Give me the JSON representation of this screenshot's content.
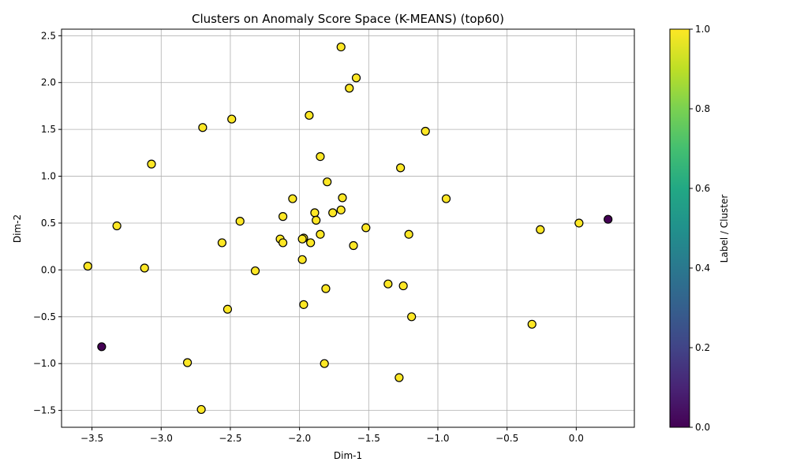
{
  "chart_data": {
    "type": "scatter",
    "title": "Clusters on Anomaly Score Space (K-MEANS) (top60)",
    "xlabel": "Dim-1",
    "ylabel": "Dim-2",
    "xlim": [
      -3.72,
      0.42
    ],
    "ylim": [
      -1.68,
      2.57
    ],
    "xticks": [
      -3.5,
      -3.0,
      -2.5,
      -2.0,
      -1.5,
      -1.0,
      -0.5,
      0.0
    ],
    "xtick_labels": [
      "−3.5",
      "−3.0",
      "−2.5",
      "−2.0",
      "−1.5",
      "−1.0",
      "−0.5",
      "0.0"
    ],
    "yticks": [
      -1.5,
      -1.0,
      -0.5,
      0.0,
      0.5,
      1.0,
      1.5,
      2.0,
      2.5
    ],
    "ytick_labels": [
      "−1.5",
      "−1.0",
      "−0.5",
      "0.0",
      "0.5",
      "1.0",
      "1.5",
      "2.0",
      "2.5"
    ],
    "grid": true,
    "colormap": "viridis",
    "colorbar": {
      "label": "Label / Cluster",
      "range": [
        0.0,
        1.0
      ],
      "ticks": [
        0.0,
        0.2,
        0.4,
        0.6,
        0.8,
        1.0
      ],
      "tick_labels": [
        "0.0",
        "0.2",
        "0.4",
        "0.6",
        "0.8",
        "1.0"
      ]
    },
    "colors": {
      "cluster_0": "#440154",
      "cluster_1": "#fde725"
    },
    "points": [
      {
        "x": -1.7,
        "y": 2.38,
        "c": 1
      },
      {
        "x": -1.59,
        "y": 2.05,
        "c": 1
      },
      {
        "x": -1.64,
        "y": 1.94,
        "c": 1
      },
      {
        "x": -1.93,
        "y": 1.65,
        "c": 1
      },
      {
        "x": -2.49,
        "y": 1.61,
        "c": 1
      },
      {
        "x": -2.7,
        "y": 1.52,
        "c": 1
      },
      {
        "x": -1.09,
        "y": 1.48,
        "c": 1
      },
      {
        "x": -1.85,
        "y": 1.21,
        "c": 1
      },
      {
        "x": -3.07,
        "y": 1.13,
        "c": 1
      },
      {
        "x": -1.27,
        "y": 1.09,
        "c": 1
      },
      {
        "x": -1.8,
        "y": 0.94,
        "c": 1
      },
      {
        "x": -1.69,
        "y": 0.77,
        "c": 1
      },
      {
        "x": -0.94,
        "y": 0.76,
        "c": 1
      },
      {
        "x": -2.05,
        "y": 0.76,
        "c": 1
      },
      {
        "x": -1.7,
        "y": 0.64,
        "c": 1
      },
      {
        "x": -1.89,
        "y": 0.61,
        "c": 1
      },
      {
        "x": -1.76,
        "y": 0.61,
        "c": 1
      },
      {
        "x": -2.12,
        "y": 0.57,
        "c": 1
      },
      {
        "x": 0.23,
        "y": 0.54,
        "c": 0
      },
      {
        "x": -1.88,
        "y": 0.53,
        "c": 1
      },
      {
        "x": -2.43,
        "y": 0.52,
        "c": 1
      },
      {
        "x": 0.02,
        "y": 0.5,
        "c": 1
      },
      {
        "x": -3.32,
        "y": 0.47,
        "c": 1
      },
      {
        "x": -1.52,
        "y": 0.45,
        "c": 1
      },
      {
        "x": -0.26,
        "y": 0.43,
        "c": 1
      },
      {
        "x": -1.85,
        "y": 0.38,
        "c": 1
      },
      {
        "x": -1.21,
        "y": 0.38,
        "c": 1
      },
      {
        "x": -1.97,
        "y": 0.34,
        "c": 1
      },
      {
        "x": -2.14,
        "y": 0.33,
        "c": 1
      },
      {
        "x": -1.98,
        "y": 0.33,
        "c": 1
      },
      {
        "x": -1.92,
        "y": 0.29,
        "c": 1
      },
      {
        "x": -2.12,
        "y": 0.29,
        "c": 1
      },
      {
        "x": -2.56,
        "y": 0.29,
        "c": 1
      },
      {
        "x": -1.61,
        "y": 0.26,
        "c": 1
      },
      {
        "x": -1.98,
        "y": 0.11,
        "c": 1
      },
      {
        "x": -3.53,
        "y": 0.04,
        "c": 1
      },
      {
        "x": -3.12,
        "y": 0.02,
        "c": 1
      },
      {
        "x": -2.32,
        "y": -0.01,
        "c": 1
      },
      {
        "x": -1.36,
        "y": -0.15,
        "c": 1
      },
      {
        "x": -1.25,
        "y": -0.17,
        "c": 1
      },
      {
        "x": -1.81,
        "y": -0.2,
        "c": 1
      },
      {
        "x": -1.97,
        "y": -0.37,
        "c": 1
      },
      {
        "x": -2.52,
        "y": -0.42,
        "c": 1
      },
      {
        "x": -1.19,
        "y": -0.5,
        "c": 1
      },
      {
        "x": -0.32,
        "y": -0.58,
        "c": 1
      },
      {
        "x": -3.43,
        "y": -0.82,
        "c": 0
      },
      {
        "x": -2.81,
        "y": -0.99,
        "c": 1
      },
      {
        "x": -1.82,
        "y": -1.0,
        "c": 1
      },
      {
        "x": -1.28,
        "y": -1.15,
        "c": 1
      },
      {
        "x": -2.71,
        "y": -1.49,
        "c": 1
      }
    ]
  }
}
